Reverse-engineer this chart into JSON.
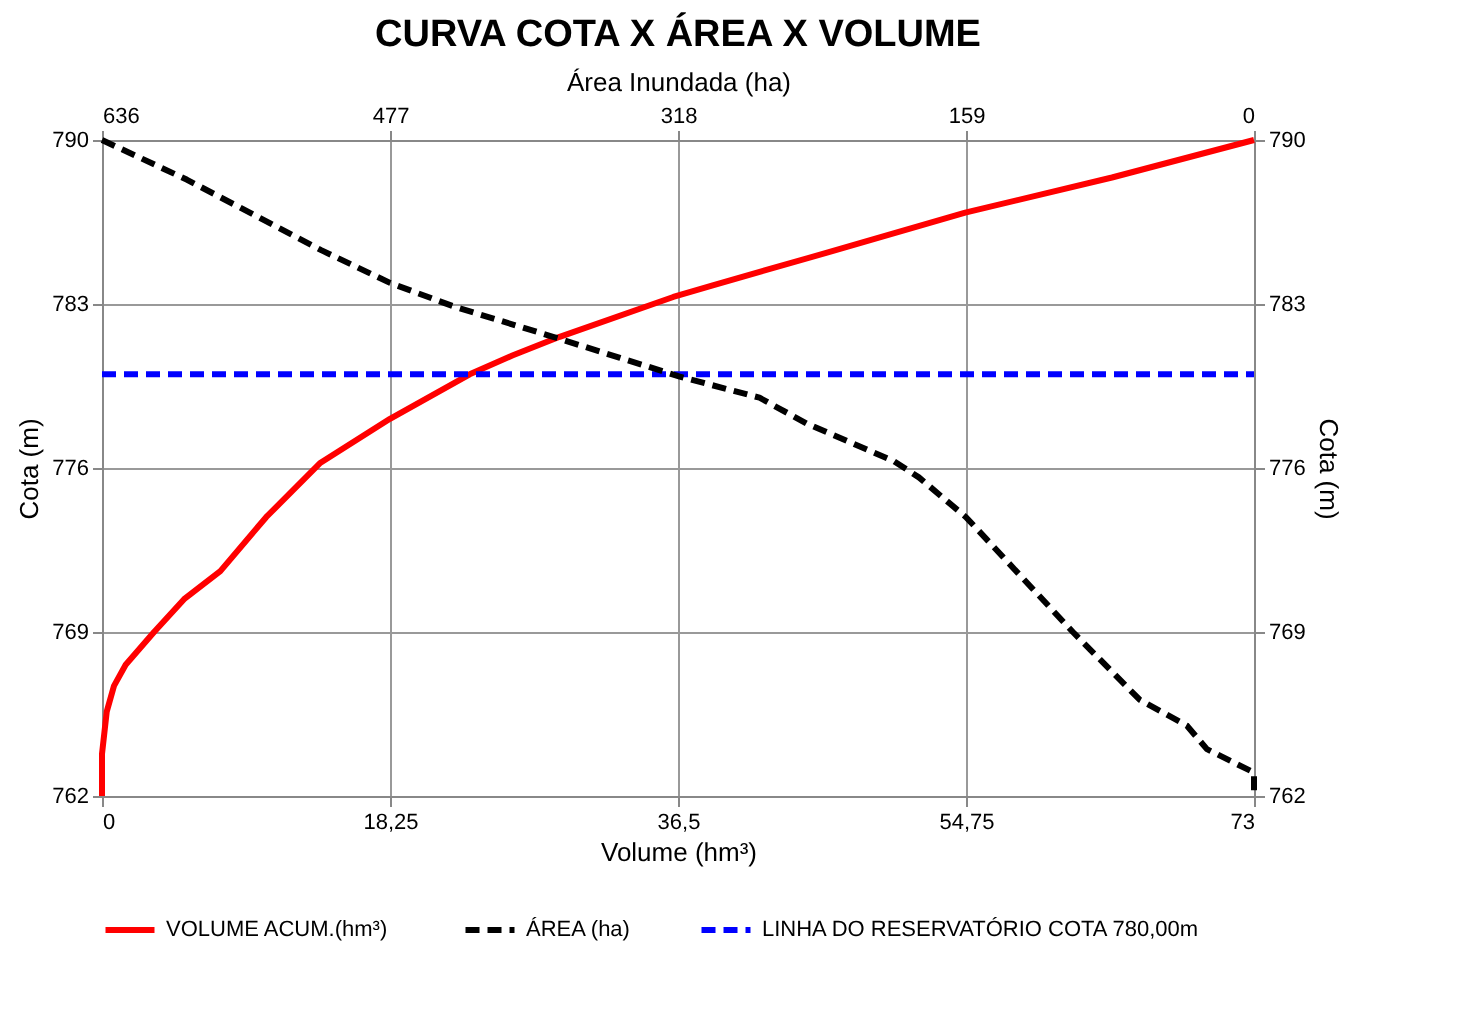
{
  "chart_data": {
    "type": "line",
    "title": "CURVA COTA X ÁREA X VOLUME",
    "xlabel": "Volume (hm³)",
    "x2label": "Área Inundada (ha)",
    "ylabel": "Cota (m)",
    "y2label": "Cota (m)",
    "xlim": [
      0,
      73
    ],
    "xticks": [
      0,
      {
        "value": 18.25,
        "label": "18,25"
      },
      {
        "value": 36.5,
        "label": "36,5"
      },
      {
        "value": 54.75,
        "label": "54,75"
      },
      73
    ],
    "x2lim": [
      636,
      0
    ],
    "x2ticks": [
      636,
      477,
      318,
      159,
      0
    ],
    "ylim": [
      762,
      790
    ],
    "yticks": [
      762,
      769,
      776,
      783,
      790
    ],
    "y2lim": [
      762,
      790
    ],
    "y2ticks": [
      762,
      769,
      776,
      783,
      790
    ],
    "grid": true,
    "legend": "bottom",
    "marker": "none",
    "series": [
      {
        "name": "VOLUME  ACUM.(hm³)",
        "color": "#ff0000",
        "line_style": "solid",
        "x": [
          0,
          0,
          0.3,
          0.76,
          1.5,
          3.3,
          5.2,
          7.5,
          10.4,
          13.8,
          18.25,
          23.3,
          26,
          29.0,
          36.2,
          38.7,
          46,
          54.7,
          64,
          73
        ],
        "values": [
          762,
          763.8,
          765.6,
          766.7,
          767.6,
          769.0,
          770.4,
          771.6,
          773.9,
          776.2,
          778.1,
          780.0,
          780.8,
          781.6,
          783.3,
          783.8,
          785.2,
          786.9,
          788.4,
          790
        ]
      },
      {
        "name": "ÁREA (ha)",
        "color": "#000000",
        "line_style": "dashed",
        "axis": "x2",
        "x": [
          636,
          589,
          515,
          477,
          442,
          387,
          350,
          317,
          273,
          247,
          199,
          185,
          159,
          100,
          63,
          37,
          26,
          0,
          0
        ],
        "values": [
          790,
          788.3,
          785.3,
          783.9,
          782.9,
          781.6,
          780.7,
          779.9,
          779.0,
          777.9,
          776.3,
          775.6,
          773.9,
          769.0,
          766.1,
          765.0,
          764.0,
          763.0,
          762
        ]
      },
      {
        "name": "LINHA DO RESERVATÓRIO COTA 780,00m",
        "color": "#0000ff",
        "line_style": "dashed",
        "x": [
          0,
          73
        ],
        "values": [
          780,
          780
        ]
      }
    ]
  }
}
